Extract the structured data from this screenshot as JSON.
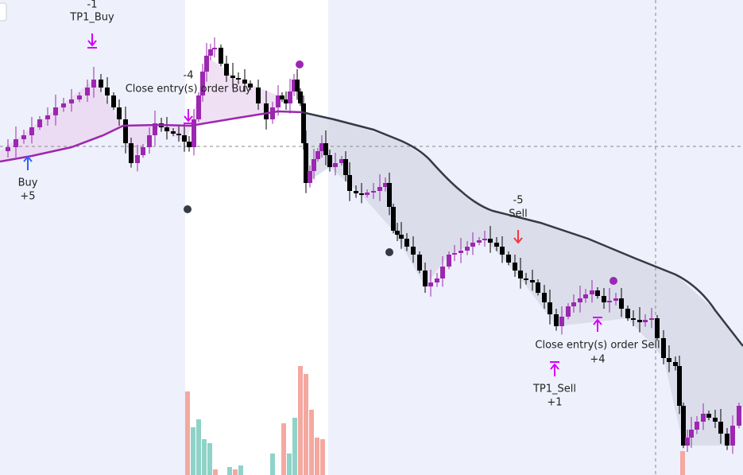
{
  "signals": [
    {
      "qty": "-1",
      "name": "TP1_Buy"
    },
    {
      "name": "Buy",
      "qty": "+5"
    },
    {
      "qty": "-4",
      "name": "Close entry(s) order Buy"
    },
    {
      "qty": "-5",
      "name": "Sell"
    },
    {
      "name": "Close entry(s) order Sell",
      "qty": "+4"
    },
    {
      "name": "TP1_Sell",
      "qty": "+1"
    }
  ]
}
